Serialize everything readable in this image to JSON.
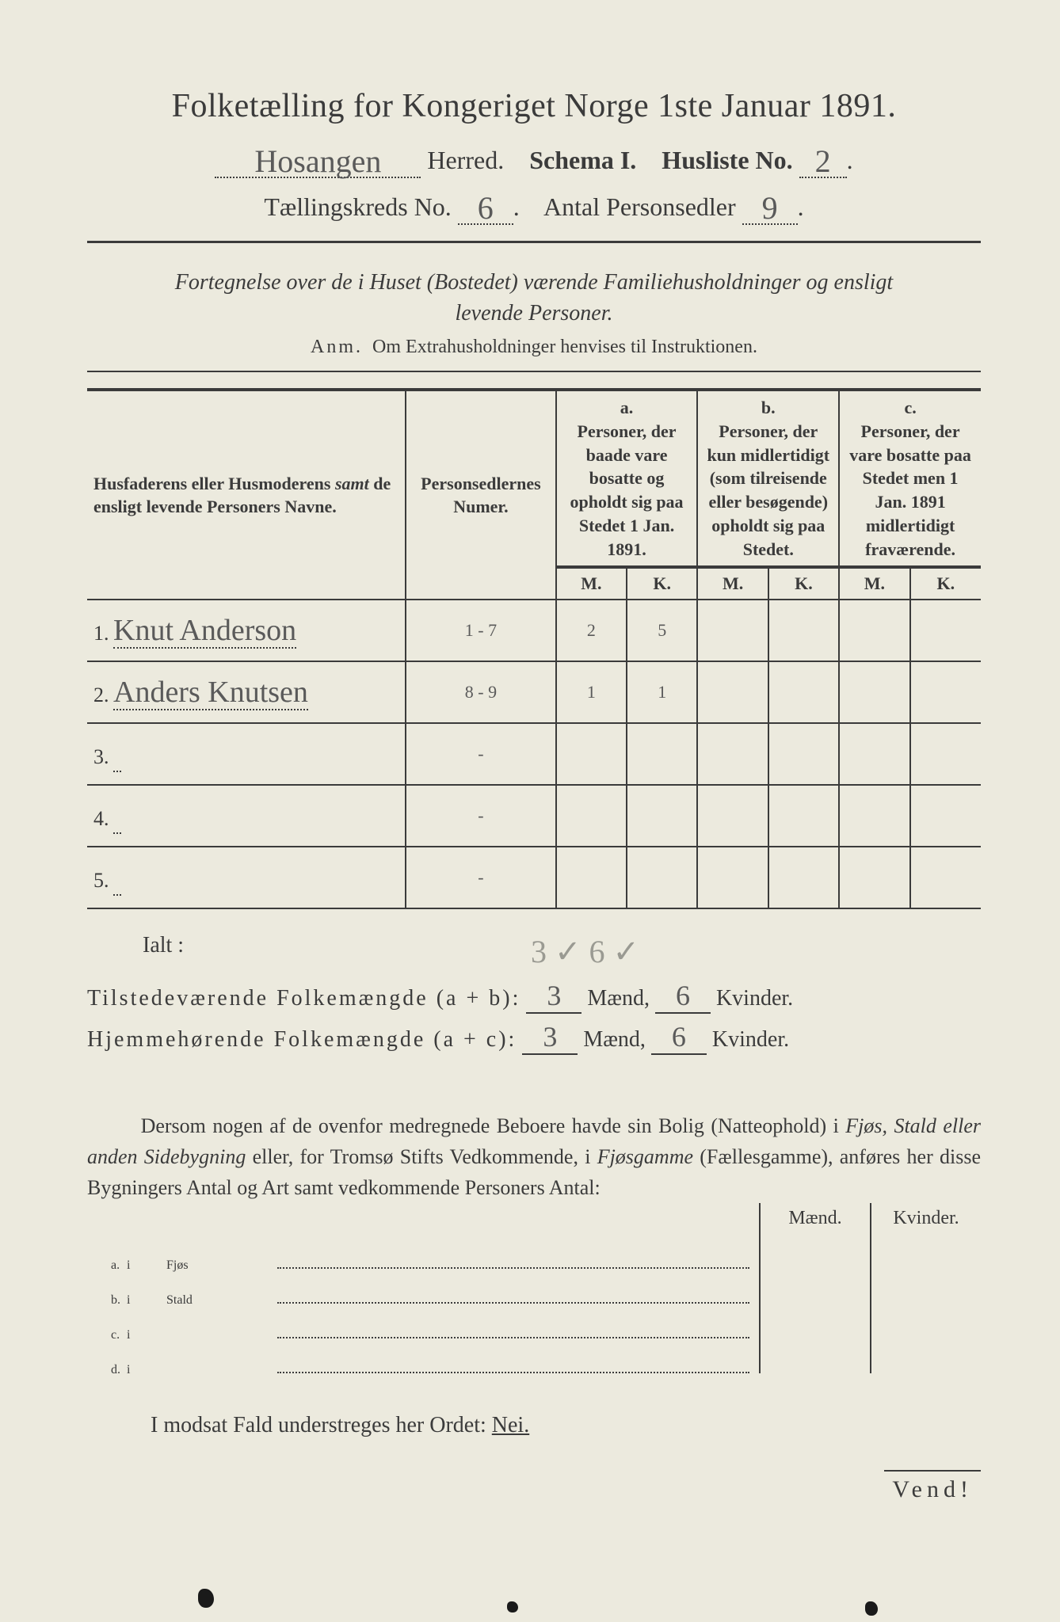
{
  "title": "Folketælling for Kongeriget Norge 1ste Januar 1891.",
  "line2": {
    "herred_value": "Hosangen",
    "herred_label": "Herred.",
    "schema_label": "Schema I.",
    "husliste_label": "Husliste No.",
    "husliste_value": "2"
  },
  "line3": {
    "kreds_label": "Tællingskreds No.",
    "kreds_value": "6",
    "antal_label": "Antal Personsedler",
    "antal_value": "9"
  },
  "fortegnelse_line1": "Fortegnelse over de i Huset (Bostedet) værende Familiehusholdninger og ensligt",
  "fortegnelse_line2": "levende Personer.",
  "anm_label": "Anm.",
  "anm_text": "Om Extrahusholdninger henvises til Instruktionen.",
  "columns": {
    "col1": "Husfaderens eller Husmoderens samt de ensligt levende Personers Navne.",
    "col1_samt": "samt",
    "col2": "Personsedlernes Numer.",
    "a_label": "a.",
    "a_text": "Personer, der baade vare bosatte og opholdt sig paa Stedet 1 Jan. 1891.",
    "b_label": "b.",
    "b_text": "Personer, der kun midlertidigt (som tilreisende eller besøgende) opholdt sig paa Stedet.",
    "c_label": "c.",
    "c_text": "Personer, der vare bosatte paa Stedet men 1 Jan. 1891 midlertidigt fraværende.",
    "M": "M.",
    "K": "K."
  },
  "rows": [
    {
      "n": "1.",
      "name": "Knut Anderson",
      "num": "1 - 7",
      "aM": "2",
      "aK": "5",
      "bM": "",
      "bK": "",
      "cM": "",
      "cK": ""
    },
    {
      "n": "2.",
      "name": "Anders Knutsen",
      "num": "8 - 9",
      "aM": "1",
      "aK": "1",
      "bM": "",
      "bK": "",
      "cM": "",
      "cK": ""
    },
    {
      "n": "3.",
      "name": "",
      "num": "-",
      "aM": "",
      "aK": "",
      "bM": "",
      "bK": "",
      "cM": "",
      "cK": ""
    },
    {
      "n": "4.",
      "name": "",
      "num": "-",
      "aM": "",
      "aK": "",
      "bM": "",
      "bK": "",
      "cM": "",
      "cK": ""
    },
    {
      "n": "5.",
      "name": "",
      "num": "-",
      "aM": "",
      "aK": "",
      "bM": "",
      "bK": "",
      "cM": "",
      "cK": ""
    }
  ],
  "ialt": {
    "label": "Ialt :",
    "pencil": "3 ✓ 6 ✓",
    "line_ab_label": "Tilstedeværende Folkemængde (a + b):",
    "line_ac_label": "Hjemmehørende Folkemængde (a + c):",
    "ab_m": "3",
    "ab_k": "6",
    "ac_m": "3",
    "ac_k": "6",
    "maend": "Mænd,",
    "kvinder": "Kvinder."
  },
  "dersom": "Dersom nogen af de ovenfor medregnede Beboere havde sin Bolig (Natteophold) i Fjøs, Stald eller anden Sidebygning eller, for Tromsø Stifts Vedkommende, i Fjøsgamme (Fællesgamme), anføres her disse Bygningers Antal og Art samt vedkommende Personers Antal:",
  "dersom_parts": {
    "p1": "Dersom nogen af de ovenfor medregnede Beboere havde sin Bolig (Natteophold) i ",
    "i1": "Fjøs, Stald eller anden Sidebygning",
    "p2": " eller, for Tromsø Stifts Vedkommende, i ",
    "i2": "Fjøsgamme",
    "p3": " (Fællesgamme), anføres her disse Bygningers Antal og Art samt vedkommende Personers Antal:"
  },
  "lower_header": {
    "maend": "Mænd.",
    "kvinder": "Kvinder."
  },
  "lower_rows": [
    {
      "letter": "a.",
      "i": "i",
      "type": "Fjøs"
    },
    {
      "letter": "b.",
      "i": "i",
      "type": "Stald"
    },
    {
      "letter": "c.",
      "i": "i",
      "type": ""
    },
    {
      "letter": "d.",
      "i": "i",
      "type": ""
    }
  ],
  "modsat": "I modsat Fald understreges her Ordet: ",
  "nei": "Nei.",
  "vend": "Vend!"
}
